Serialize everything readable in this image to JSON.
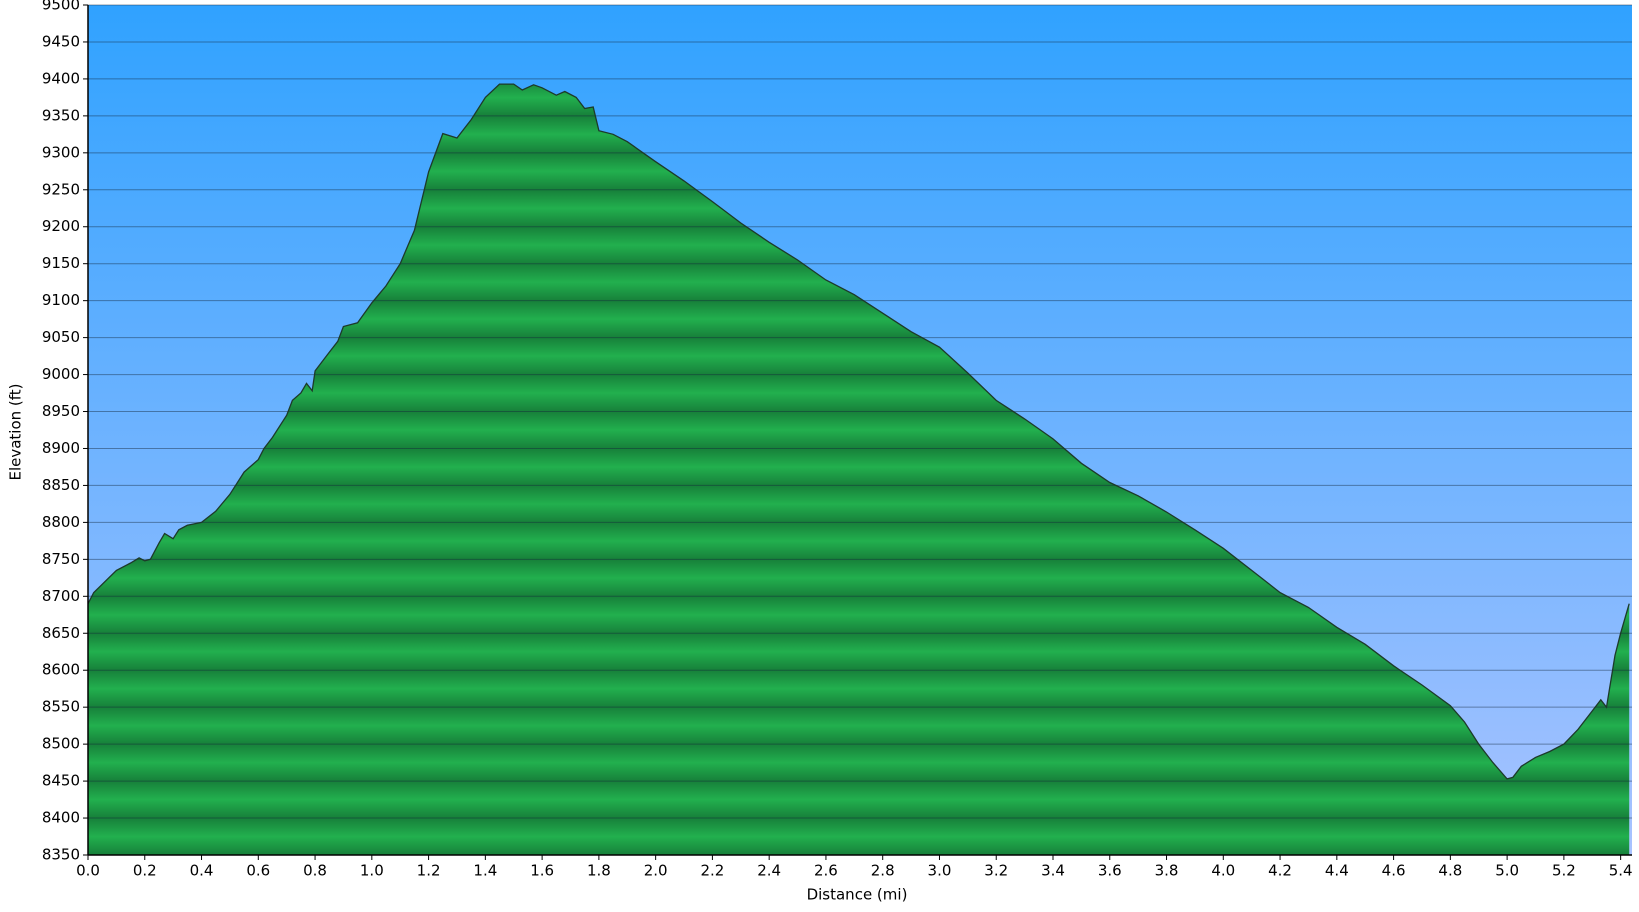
{
  "chart_data": {
    "type": "area",
    "x_label": "Distance   (mi)",
    "y_label": "Elevation (ft)",
    "x": [
      0.0,
      0.02,
      0.1,
      0.15,
      0.18,
      0.2,
      0.22,
      0.25,
      0.27,
      0.3,
      0.32,
      0.35,
      0.4,
      0.45,
      0.5,
      0.55,
      0.6,
      0.62,
      0.65,
      0.7,
      0.72,
      0.75,
      0.77,
      0.79,
      0.8,
      0.85,
      0.88,
      0.9,
      0.95,
      1.0,
      1.05,
      1.1,
      1.15,
      1.2,
      1.22,
      1.25,
      1.3,
      1.35,
      1.4,
      1.45,
      1.5,
      1.53,
      1.57,
      1.6,
      1.65,
      1.68,
      1.72,
      1.75,
      1.78,
      1.8,
      1.85,
      1.9,
      2.0,
      2.1,
      2.2,
      2.3,
      2.4,
      2.5,
      2.6,
      2.7,
      2.8,
      2.9,
      3.0,
      3.1,
      3.2,
      3.3,
      3.4,
      3.5,
      3.6,
      3.7,
      3.8,
      3.9,
      4.0,
      4.1,
      4.2,
      4.3,
      4.4,
      4.5,
      4.6,
      4.7,
      4.8,
      4.85,
      4.9,
      4.95,
      5.0,
      5.02,
      5.05,
      5.1,
      5.15,
      5.2,
      5.25,
      5.3,
      5.33,
      5.35,
      5.38,
      5.4,
      5.43
    ],
    "series": [
      {
        "name": "Elevation",
        "color": "#1fa84a",
        "values": [
          8690,
          8705,
          8735,
          8745,
          8752,
          8748,
          8750,
          8772,
          8785,
          8778,
          8790,
          8796,
          8800,
          8815,
          8838,
          8868,
          8885,
          8900,
          8915,
          8945,
          8965,
          8975,
          8988,
          8978,
          9005,
          9030,
          9045,
          9065,
          9070,
          9097,
          9120,
          9150,
          9195,
          9274,
          9295,
          9326,
          9320,
          9345,
          9375,
          9393,
          9393,
          9385,
          9392,
          9388,
          9378,
          9383,
          9375,
          9360,
          9362,
          9330,
          9325,
          9315,
          9288,
          9262,
          9234,
          9205,
          9179,
          9155,
          9128,
          9108,
          9083,
          9058,
          9037,
          9002,
          8965,
          8940,
          8913,
          8880,
          8854,
          8836,
          8814,
          8790,
          8765,
          8735,
          8705,
          8685,
          8658,
          8635,
          8606,
          8580,
          8552,
          8530,
          8500,
          8475,
          8453,
          8455,
          8470,
          8482,
          8490,
          8500,
          8520,
          8545,
          8560,
          8550,
          8620,
          8650,
          8690
        ]
      }
    ],
    "xlim": [
      0,
      5.44
    ],
    "ylim": [
      8350,
      9500
    ],
    "xticks": [
      {
        "value": 0,
        "label": "0.0"
      },
      0.2,
      0.4,
      0.6,
      0.8,
      {
        "value": 1,
        "label": "1.0"
      },
      1.2,
      1.4,
      1.6,
      1.8,
      {
        "value": 2,
        "label": "2.0"
      },
      2.2,
      2.4,
      2.6,
      2.8,
      {
        "value": 3,
        "label": "3.0"
      },
      3.2,
      3.4,
      3.6,
      3.8,
      {
        "value": 4,
        "label": "4.0"
      },
      4.2,
      4.4,
      4.6,
      4.8,
      {
        "value": 5,
        "label": "5.0"
      },
      5.2,
      5.4
    ],
    "yticks": [
      8350,
      8400,
      8450,
      8500,
      8550,
      8600,
      8650,
      8700,
      8750,
      8800,
      8850,
      8900,
      8950,
      9000,
      9050,
      9100,
      9150,
      9200,
      9250,
      9300,
      9350,
      9400,
      9450,
      9500
    ],
    "grid": true
  }
}
